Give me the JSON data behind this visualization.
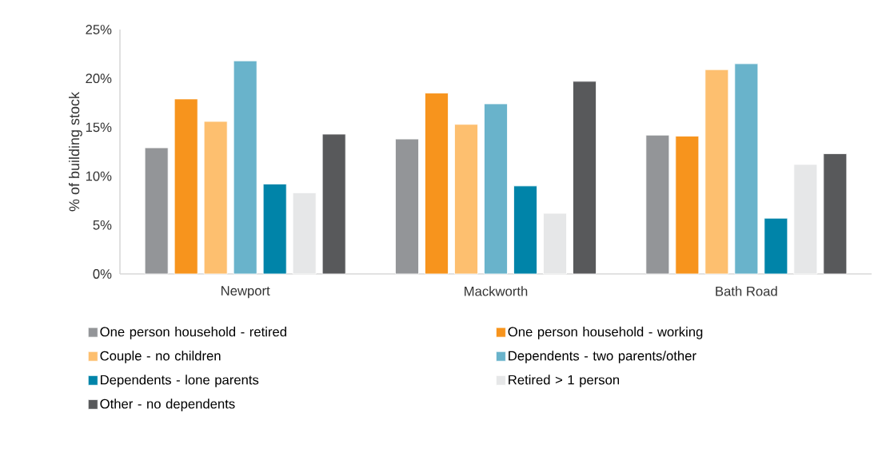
{
  "chart_data": {
    "type": "bar",
    "ylabel": "% of building stock",
    "categories": [
      "Newport",
      "Mackworth",
      "Bath Road"
    ],
    "series": [
      {
        "name": "One person household - retired",
        "color": "#939598",
        "values": [
          12.9,
          13.8,
          14.2
        ]
      },
      {
        "name": "One person household - working",
        "color": "#f7941d",
        "values": [
          17.9,
          18.5,
          14.1
        ]
      },
      {
        "name": "Couple - no children",
        "color": "#fdbf6f",
        "values": [
          15.6,
          15.3,
          20.9
        ]
      },
      {
        "name": "Dependents - two parents/other",
        "color": "#69b3cb",
        "values": [
          21.8,
          17.4,
          21.5
        ]
      },
      {
        "name": "Dependents - lone parents",
        "color": "#0084a9",
        "values": [
          9.2,
          9.0,
          5.7
        ]
      },
      {
        "name": "Retired > 1 person",
        "color": "#e6e7e8",
        "values": [
          8.3,
          6.2,
          11.2
        ]
      },
      {
        "name": "Other - no dependents",
        "color": "#58595b",
        "values": [
          14.3,
          19.7,
          12.3
        ]
      }
    ],
    "ylim": [
      0,
      25
    ],
    "yticks": [
      {
        "value": 0,
        "label": "0%"
      },
      {
        "value": 5,
        "label": "5%"
      },
      {
        "value": 10,
        "label": "10%"
      },
      {
        "value": 15,
        "label": "15%"
      },
      {
        "value": 20,
        "label": "20%"
      },
      {
        "value": 25,
        "label": "25%"
      }
    ],
    "legend": "bottom"
  }
}
